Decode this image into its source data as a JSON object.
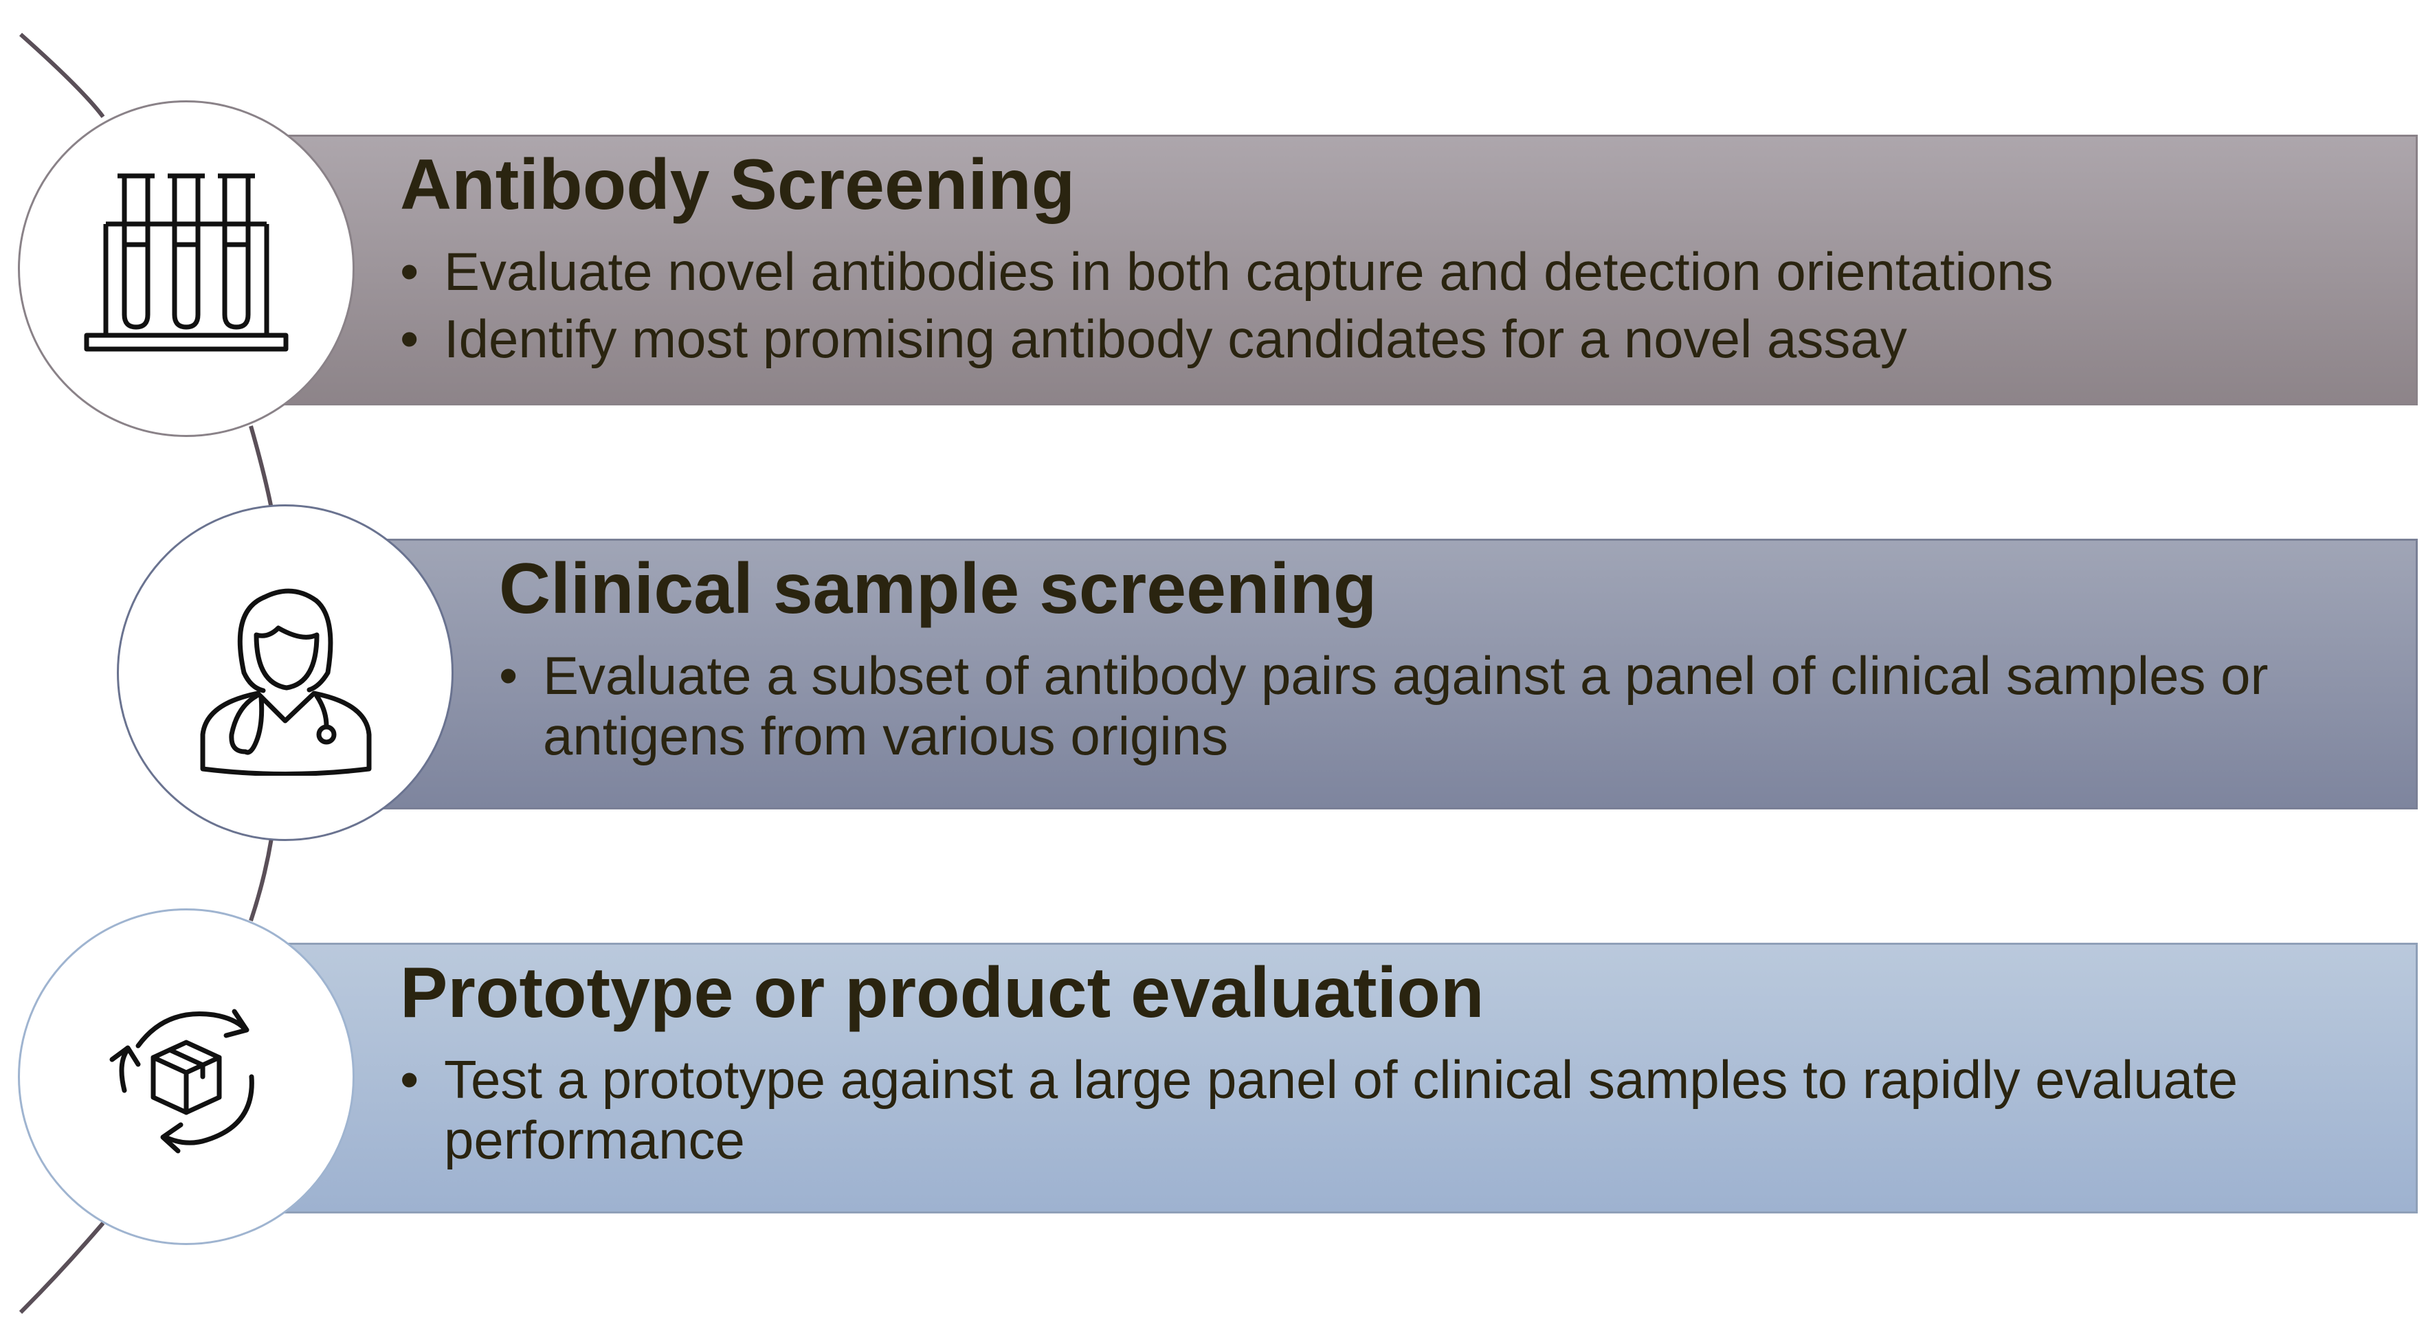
{
  "stages": [
    {
      "title": "Antibody Screening",
      "icon": "test-tubes-icon",
      "points": [
        "Evaluate novel antibodies in both capture and detection orientations",
        "Identify most promising antibody candidates for a novel assay"
      ]
    },
    {
      "title": "Clinical sample screening",
      "icon": "doctor-icon",
      "points": [
        "Evaluate a subset of antibody pairs against a panel of clinical samples or antigens from various origins"
      ]
    },
    {
      "title": "Prototype or product evaluation",
      "icon": "package-cycle-icon",
      "points": [
        "Test a prototype against a large panel of clinical samples to rapidly evaluate performance"
      ]
    }
  ],
  "colors": {
    "title_text": "#2a2410",
    "band_1": "#9d959b",
    "band_2": "#8d93aa",
    "band_3": "#aebfd6",
    "arc": "#5a4f58"
  }
}
